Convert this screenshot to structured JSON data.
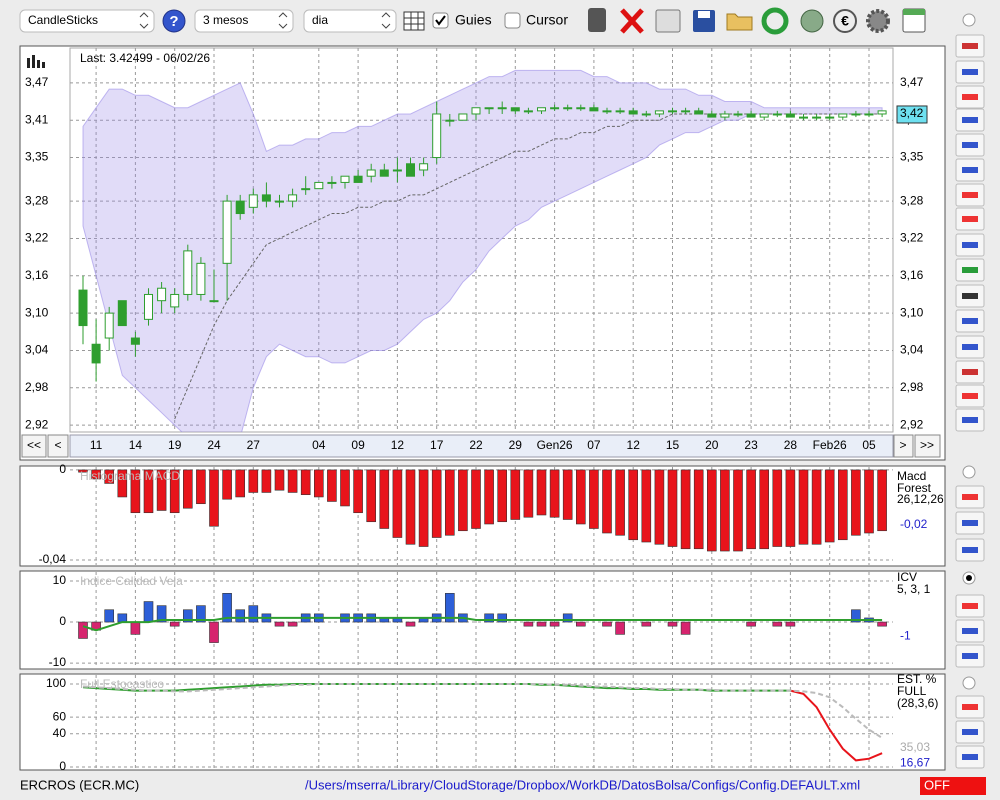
{
  "toolbar": {
    "chart_type": "CandleSticks",
    "period": "3 mesos",
    "interval": "dia",
    "guides": "Guies",
    "cursor": "Cursor"
  },
  "navigation": {
    "first": "<<",
    "prev": "<",
    "next": ">",
    "last": ">>"
  },
  "status": {
    "symbol": "ERCROS (ECR.MC)",
    "config_path": "/Users/mserra/Library/CloudStorage/Dropbox/WorkDB/DatosBolsa/Configs/Config.DEFAULT.xml",
    "state": "OFF"
  },
  "chart_data": [
    {
      "type": "candlestick",
      "title": "Last: 3.42499 - 06/02/26",
      "categories": [
        null,
        "11",
        null,
        null,
        "14",
        null,
        null,
        "19",
        null,
        null,
        "24",
        null,
        null,
        "27",
        null,
        null,
        null,
        null,
        "04",
        null,
        null,
        "09",
        null,
        null,
        "12",
        null,
        null,
        "17",
        null,
        null,
        "22",
        null,
        null,
        "29",
        null,
        null,
        "Gen26",
        null,
        null,
        "07",
        null,
        null,
        "12",
        null,
        null,
        "15",
        null,
        null,
        "20",
        null,
        null,
        "23",
        null,
        null,
        "28",
        null,
        null,
        "Feb26",
        null,
        null,
        "05",
        null
      ],
      "open": [
        3.137,
        3.05,
        3.06,
        3.12,
        3.06,
        3.09,
        3.12,
        3.11,
        3.13,
        3.13,
        3.12,
        3.18,
        3.28,
        3.27,
        3.29,
        3.28,
        3.28,
        3.3,
        3.3,
        3.31,
        3.31,
        3.32,
        3.32,
        3.33,
        3.33,
        3.34,
        3.33,
        3.35,
        3.41,
        3.41,
        3.42,
        3.43,
        3.43,
        3.43,
        3.425,
        3.425,
        3.43,
        3.43,
        3.43,
        3.43,
        3.425,
        3.425,
        3.425,
        3.42,
        3.42,
        3.425,
        3.425,
        3.425,
        3.42,
        3.415,
        3.42,
        3.42,
        3.415,
        3.42,
        3.42,
        3.415,
        3.415,
        3.415,
        3.415,
        3.42,
        3.42,
        3.42
      ],
      "high": [
        3.16,
        3.09,
        3.11,
        3.12,
        3.07,
        3.14,
        3.15,
        3.14,
        3.21,
        3.19,
        3.17,
        3.29,
        3.29,
        3.3,
        3.31,
        3.29,
        3.3,
        3.32,
        3.31,
        3.32,
        3.32,
        3.33,
        3.34,
        3.34,
        3.35,
        3.35,
        3.35,
        3.44,
        3.42,
        3.42,
        3.43,
        3.43,
        3.44,
        3.43,
        3.43,
        3.43,
        3.435,
        3.435,
        3.435,
        3.435,
        3.43,
        3.43,
        3.43,
        3.425,
        3.425,
        3.43,
        3.43,
        3.43,
        3.425,
        3.425,
        3.425,
        3.425,
        3.42,
        3.425,
        3.425,
        3.42,
        3.42,
        3.42,
        3.42,
        3.425,
        3.425,
        3.425
      ],
      "low": [
        3.05,
        2.99,
        3.04,
        3.08,
        3.03,
        3.08,
        3.1,
        3.1,
        3.12,
        3.12,
        3.12,
        3.12,
        3.25,
        3.26,
        3.27,
        3.27,
        3.27,
        3.29,
        3.3,
        3.3,
        3.3,
        3.31,
        3.31,
        3.32,
        3.31,
        3.32,
        3.32,
        3.34,
        3.4,
        3.41,
        3.41,
        3.42,
        3.42,
        3.42,
        3.42,
        3.42,
        3.425,
        3.425,
        3.425,
        3.425,
        3.42,
        3.42,
        3.42,
        3.415,
        3.415,
        3.42,
        3.42,
        3.42,
        3.415,
        3.41,
        3.415,
        3.415,
        3.41,
        3.415,
        3.415,
        3.41,
        3.41,
        3.41,
        3.41,
        3.415,
        3.415,
        3.415
      ],
      "close": [
        3.08,
        3.02,
        3.1,
        3.08,
        3.05,
        3.13,
        3.14,
        3.13,
        3.2,
        3.18,
        3.12,
        3.28,
        3.26,
        3.29,
        3.28,
        3.28,
        3.29,
        3.3,
        3.31,
        3.31,
        3.32,
        3.31,
        3.33,
        3.32,
        3.33,
        3.32,
        3.34,
        3.42,
        3.41,
        3.42,
        3.43,
        3.43,
        3.43,
        3.425,
        3.425,
        3.43,
        3.43,
        3.43,
        3.43,
        3.425,
        3.425,
        3.425,
        3.42,
        3.42,
        3.425,
        3.425,
        3.425,
        3.42,
        3.415,
        3.42,
        3.42,
        3.415,
        3.42,
        3.42,
        3.415,
        3.415,
        3.415,
        3.415,
        3.42,
        3.42,
        3.42,
        3.425
      ],
      "band_upper": [
        3.4,
        3.43,
        3.46,
        3.46,
        3.45,
        3.45,
        3.44,
        3.43,
        3.43,
        3.44,
        3.45,
        3.46,
        3.47,
        3.42,
        3.36,
        3.37,
        3.37,
        3.38,
        3.38,
        3.39,
        3.39,
        3.4,
        3.4,
        3.41,
        3.42,
        3.42,
        3.43,
        3.44,
        3.45,
        3.46,
        3.47,
        3.48,
        3.48,
        3.49,
        3.49,
        3.49,
        3.49,
        3.49,
        3.49,
        3.48,
        3.48,
        3.47,
        3.47,
        3.47,
        3.46,
        3.46,
        3.46,
        3.45,
        3.45,
        3.44,
        3.44,
        3.44,
        3.43,
        3.43,
        3.43,
        3.43,
        3.43,
        3.43,
        3.43,
        3.43,
        3.43,
        3.43
      ],
      "band_lower": [
        3.24,
        3.16,
        3.08,
        3.0,
        2.98,
        2.96,
        2.94,
        2.92,
        2.9,
        2.9,
        2.9,
        2.9,
        2.9,
        2.98,
        3.03,
        3.05,
        3.04,
        3.03,
        3.03,
        3.02,
        3.02,
        3.03,
        3.04,
        3.04,
        3.05,
        3.07,
        3.09,
        3.1,
        3.12,
        3.15,
        3.17,
        3.2,
        3.22,
        3.24,
        3.25,
        3.27,
        3.28,
        3.29,
        3.3,
        3.31,
        3.32,
        3.33,
        3.34,
        3.35,
        3.37,
        3.38,
        3.39,
        3.39,
        3.4,
        3.41,
        3.41,
        3.42,
        3.42,
        3.42,
        3.42,
        3.42,
        3.42,
        3.42,
        3.42,
        3.42,
        3.42,
        3.42
      ],
      "ma": [
        null,
        null,
        null,
        null,
        null,
        null,
        null,
        2.93,
        2.98,
        3.03,
        3.08,
        3.12,
        3.15,
        3.18,
        3.21,
        3.22,
        3.23,
        3.24,
        3.25,
        3.26,
        3.26,
        3.27,
        3.27,
        3.28,
        3.28,
        3.29,
        3.29,
        3.3,
        3.31,
        3.32,
        3.33,
        3.34,
        3.35,
        3.36,
        3.36,
        3.37,
        3.38,
        3.38,
        3.39,
        3.39,
        3.4,
        3.4,
        3.41,
        3.41,
        3.41,
        3.42,
        3.42,
        3.42,
        3.42,
        3.42,
        3.42,
        3.42,
        3.42,
        3.42,
        3.42,
        3.42,
        3.42,
        3.42,
        3.42,
        3.42,
        3.42,
        3.42
      ],
      "up_color": "#ffffff",
      "down_color": "#2e9e2e",
      "wick_color": "#2e9e2e",
      "band_color": "#9b8ce8",
      "ma_color": "#666666",
      "current": {
        "value": 3.42,
        "label": "3,42"
      },
      "ylim": [
        2.909,
        3.526
      ],
      "yticks": [
        {
          "value": 3.47,
          "label": "3,47"
        },
        {
          "value": 3.41,
          "label": "3,41"
        },
        {
          "value": 3.35,
          "label": "3,35"
        },
        {
          "value": 3.28,
          "label": "3,28"
        },
        {
          "value": 3.22,
          "label": "3,22"
        },
        {
          "value": 3.16,
          "label": "3,16"
        },
        {
          "value": 3.1,
          "label": "3,10"
        },
        {
          "value": 3.04,
          "label": "3,04"
        },
        {
          "value": 2.98,
          "label": "2,98"
        },
        {
          "value": 2.92,
          "label": "2,92"
        }
      ],
      "grid": true
    },
    {
      "type": "bar",
      "title": "Histograma MACD",
      "indicator_labels": [
        "Macd",
        "Forest",
        "26,12,26"
      ],
      "values": [
        -0.001,
        -0.004,
        -0.006,
        -0.012,
        -0.019,
        -0.019,
        -0.018,
        -0.019,
        -0.017,
        -0.015,
        -0.025,
        -0.013,
        -0.012,
        -0.01,
        -0.01,
        -0.009,
        -0.01,
        -0.011,
        -0.012,
        -0.014,
        -0.016,
        -0.019,
        -0.023,
        -0.026,
        -0.03,
        -0.033,
        -0.034,
        -0.03,
        -0.029,
        -0.027,
        -0.026,
        -0.024,
        -0.023,
        -0.022,
        -0.021,
        -0.02,
        -0.021,
        -0.022,
        -0.024,
        -0.026,
        -0.028,
        -0.029,
        -0.031,
        -0.032,
        -0.033,
        -0.034,
        -0.035,
        -0.035,
        -0.036,
        -0.036,
        -0.036,
        -0.035,
        -0.035,
        -0.034,
        -0.034,
        -0.033,
        -0.033,
        -0.032,
        -0.031,
        -0.029,
        -0.028,
        -0.027
      ],
      "color": "#e8141b",
      "readouts": [
        {
          "value": -0.02,
          "label": "-0,02",
          "color": "#2222cc"
        }
      ],
      "ylim": [
        -0.0422,
        0.0013
      ],
      "yticks": [
        0,
        {
          "value": -0.04,
          "label": "-0,04"
        }
      ],
      "grid": true
    },
    {
      "type": "bar",
      "title": "Indice Calidad Vela",
      "indicator_labels": [
        "ICV",
        "5, 3, 1"
      ],
      "values": [
        -4,
        -2,
        3,
        2,
        -3,
        5,
        4,
        -1,
        3,
        4,
        -5,
        7,
        3,
        4,
        2,
        -1,
        -1,
        2,
        2,
        0,
        2,
        2,
        2,
        1,
        1,
        -1,
        1,
        2,
        7,
        2,
        0,
        2,
        2,
        0,
        -1,
        -1,
        -1,
        2,
        -1,
        0,
        -1,
        -3,
        0,
        -1,
        0,
        -1,
        -3,
        0,
        0,
        0,
        0,
        -1,
        0,
        -1,
        -1,
        0,
        0,
        0,
        0,
        3,
        1,
        -1
      ],
      "positive_color": "#2d5fd8",
      "negative_color": "#d6246e",
      "line": [
        -1,
        -2,
        -1,
        0,
        0,
        0,
        0.5,
        0.5,
        0.5,
        0.5,
        0.5,
        1,
        1,
        1,
        1,
        1,
        1,
        1,
        1,
        1,
        1,
        1,
        1,
        1,
        1,
        1,
        1,
        1,
        1,
        1,
        0.5,
        0.5,
        0.5,
        0.5,
        0.5,
        0.5,
        0.5,
        0.5,
        0.5,
        0.5,
        0.5,
        0.5,
        0.5,
        0.5,
        0.5,
        0.5,
        0.5,
        0.5,
        0.5,
        0.5,
        0.5,
        0.5,
        0.5,
        0.5,
        0.5,
        0.5,
        0.5,
        0.5,
        0.5,
        0.5,
        0.5,
        0.5
      ],
      "line_color": "#2e9e2e",
      "readouts": [
        {
          "value": -1,
          "label": "-1",
          "color": "#2222cc"
        }
      ],
      "ylim": [
        -11.2,
        12.2
      ],
      "yticks": [
        10,
        0,
        -10
      ],
      "grid": true
    },
    {
      "type": "line",
      "title": "Full Estocastico",
      "indicator_labels": [
        "EST. %",
        "FULL",
        "(28,3,6)"
      ],
      "series": [
        {
          "color": "#2e9e2e",
          "dashed": false,
          "values": [
            96,
            95,
            94,
            93,
            92,
            92,
            92,
            92,
            93,
            94,
            95,
            96,
            97,
            98,
            99,
            99,
            100,
            100,
            100,
            100,
            100,
            100,
            100,
            100,
            100,
            100,
            100,
            100,
            100,
            100,
            100,
            100,
            100,
            100,
            100,
            99,
            99,
            98,
            97,
            96,
            95,
            95,
            94,
            94,
            93,
            93,
            93,
            93,
            92,
            92,
            92,
            92,
            92,
            92,
            92,
            null,
            null,
            null,
            null,
            null,
            null,
            null
          ]
        },
        {
          "color": "#e8141b",
          "dashed": false,
          "values": [
            null,
            null,
            null,
            null,
            null,
            null,
            null,
            null,
            null,
            null,
            null,
            null,
            null,
            null,
            null,
            null,
            null,
            null,
            null,
            null,
            null,
            null,
            null,
            null,
            null,
            null,
            null,
            null,
            null,
            null,
            null,
            null,
            null,
            null,
            null,
            null,
            null,
            null,
            null,
            null,
            null,
            null,
            null,
            null,
            null,
            null,
            null,
            null,
            null,
            null,
            null,
            null,
            null,
            null,
            92,
            88,
            72,
            45,
            22,
            8,
            10,
            16.67
          ]
        },
        {
          "color": "#bbbbbb",
          "dashed": true,
          "values": [
            97,
            96,
            95,
            94,
            93,
            92,
            92,
            91,
            91,
            92,
            93,
            94,
            95,
            96,
            97,
            98,
            99,
            99,
            100,
            100,
            100,
            100,
            100,
            100,
            100,
            100,
            100,
            100,
            100,
            100,
            100,
            100,
            100,
            100,
            100,
            100,
            99,
            99,
            98,
            97,
            97,
            96,
            95,
            95,
            94,
            94,
            93,
            93,
            93,
            92,
            92,
            92,
            92,
            92,
            92,
            91,
            89,
            84,
            72,
            58,
            45,
            35.03
          ]
        }
      ],
      "readouts": [
        {
          "value": 35.03,
          "label": "35,03",
          "color": "#aaaaaa"
        },
        {
          "value": 16.67,
          "label": "16,67",
          "color": "#2222cc"
        }
      ],
      "ylim": [
        -2.4,
        110.8
      ],
      "yticks": [
        100,
        60,
        40,
        0
      ],
      "grid": true
    }
  ]
}
